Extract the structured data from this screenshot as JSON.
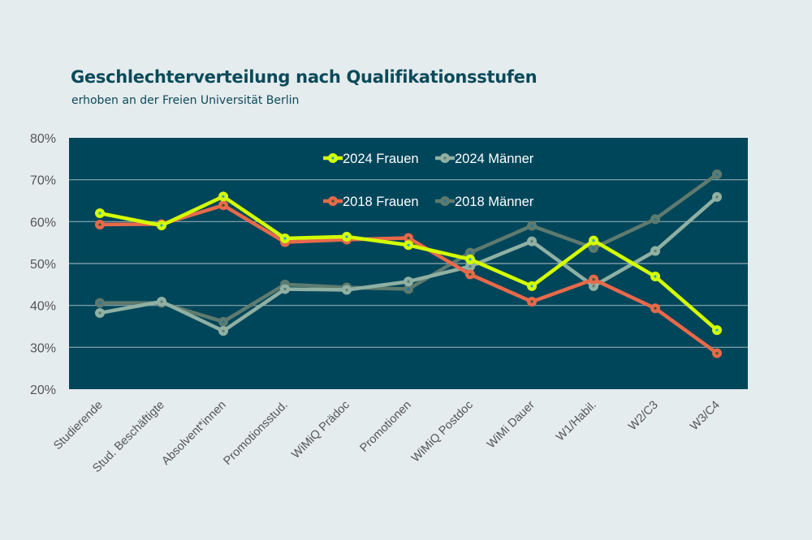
{
  "chart_data": {
    "type": "line",
    "title": "Geschlechterverteilung nach Qualifikationsstufen",
    "subtitle": "erhoben an der Freien Universität Berlin",
    "categories": [
      "Studierende",
      "Stud. Beschäftigte",
      "Absolvent*innen",
      "Promotionsstud.",
      "WiMiQ Prädoc",
      "Promotionen",
      "WiMiQ Postdoc",
      "WiMi Dauer",
      "W1/Habil.",
      "W2/C3",
      "W3/C4"
    ],
    "ylim": [
      20,
      80
    ],
    "yticks": [
      "20%",
      "30%",
      "40%",
      "50%",
      "60%",
      "70%",
      "80%"
    ],
    "grid": true,
    "legend_placement": "top-center",
    "plot_background": "#00465a",
    "series": [
      {
        "name": "2024 Frauen",
        "color": "#d4ff00",
        "dot": "#2a9fd6",
        "values": [
          62.0,
          59.1,
          66.0,
          56.0,
          56.4,
          54.4,
          51.0,
          44.6,
          55.5,
          46.9,
          34.1
        ]
      },
      {
        "name": "2024 Männer",
        "color": "#8fb0a3",
        "dot": "#5f7a6e",
        "values": [
          38.2,
          40.9,
          33.9,
          43.9,
          43.7,
          45.7,
          49.3,
          55.3,
          44.6,
          53.0,
          65.9
        ]
      },
      {
        "name": "2018 Frauen",
        "color": "#e8694a",
        "dot": "#2f5a2a",
        "values": [
          59.3,
          59.4,
          63.9,
          55.1,
          55.7,
          56.1,
          47.4,
          40.9,
          46.2,
          39.3,
          28.6
        ]
      },
      {
        "name": "2018 Männer",
        "color": "#5f7a6e",
        "dot": "#1f77a0",
        "values": [
          40.6,
          40.6,
          36.1,
          45.0,
          44.3,
          43.9,
          52.6,
          59.0,
          53.7,
          60.6,
          71.3
        ]
      }
    ]
  }
}
